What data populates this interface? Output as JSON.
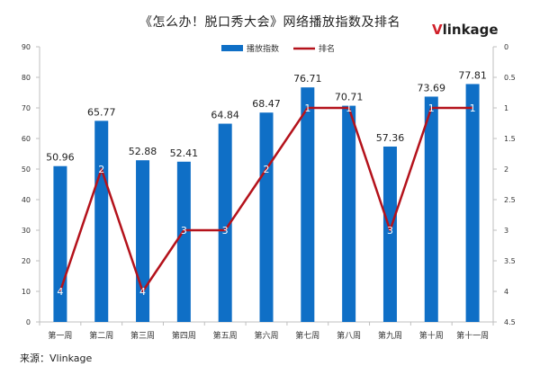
{
  "title": "《怎么办！脱口秀大会》网络播放指数及排名",
  "logo": {
    "prefix": "V",
    "rest": "linkage"
  },
  "source": "来源：Vlinkage",
  "colors": {
    "bar": "#0f6fc6",
    "line": "#b4121b",
    "axis": "#bfbfbf",
    "text": "#333333"
  },
  "chart_data": {
    "type": "bar",
    "categories": [
      "第一周",
      "第二周",
      "第三周",
      "第四周",
      "第五周",
      "第六周",
      "第七周",
      "第八周",
      "第九周",
      "第十周",
      "第十一周"
    ],
    "series": [
      {
        "name": "播放指数",
        "type": "bar",
        "axis": "left",
        "values": [
          50.96,
          65.77,
          52.88,
          52.41,
          64.84,
          68.47,
          76.71,
          70.71,
          57.36,
          73.69,
          77.81
        ]
      },
      {
        "name": "排名",
        "type": "line",
        "axis": "right",
        "values": [
          4,
          2,
          4,
          3,
          3,
          2,
          1,
          1,
          3,
          1,
          1
        ]
      }
    ],
    "left_axis": {
      "ylim": [
        0,
        90
      ],
      "ticks": [
        "0",
        "10",
        "20",
        "30",
        "40",
        "50",
        "60",
        "70",
        "80",
        "90"
      ]
    },
    "right_axis": {
      "ylim": [
        0,
        4.5
      ],
      "inverted": true,
      "ticks": [
        "0",
        "0.5",
        "1",
        "1.5",
        "2",
        "2.5",
        "3",
        "3.5",
        "4",
        "4.5"
      ]
    },
    "legend_position": "top-center"
  }
}
